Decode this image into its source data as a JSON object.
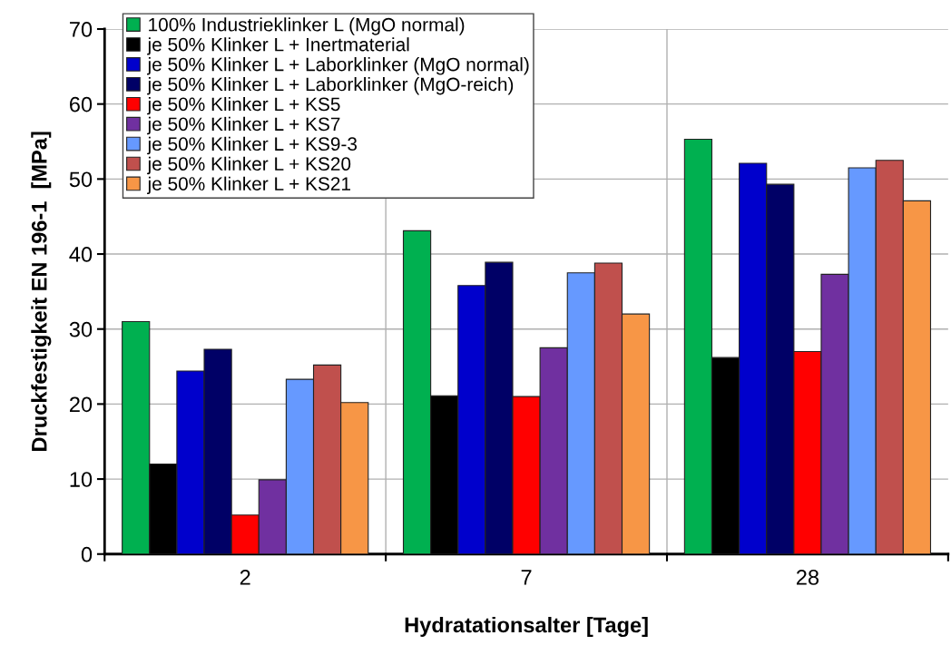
{
  "chart_data": {
    "type": "bar",
    "xlabel": "Hydratationsalter [Tage]",
    "ylabel": "Druckfestigkeit EN 196-1  [MPa]",
    "categories": [
      "2",
      "7",
      "28"
    ],
    "series": [
      {
        "name": "100% Industrieklinker L (MgO normal)",
        "color": "#00b050",
        "values": [
          31.0,
          43.1,
          55.3
        ]
      },
      {
        "name": "je 50% Klinker L + Inertmaterial",
        "color": "#000000",
        "values": [
          12.0,
          21.1,
          26.2
        ]
      },
      {
        "name": "je 50% Klinker L + Laborklinker (MgO normal)",
        "color": "#0000cc",
        "values": [
          24.4,
          35.8,
          52.1
        ]
      },
      {
        "name": "je 50% Klinker L + Laborklinker (MgO-reich)",
        "color": "#000066",
        "values": [
          27.3,
          38.9,
          49.3
        ]
      },
      {
        "name": "je 50% Klinker L + KS5",
        "color": "#ff0000",
        "values": [
          5.2,
          21.0,
          27.0
        ]
      },
      {
        "name": "je 50% Klinker L + KS7",
        "color": "#7030a0",
        "values": [
          9.9,
          27.5,
          37.3
        ]
      },
      {
        "name": "je 50% Klinker L + KS9-3",
        "color": "#6699ff",
        "values": [
          23.3,
          37.5,
          51.5
        ]
      },
      {
        "name": "je 50% Klinker L + KS20",
        "color": "#c0504d",
        "values": [
          25.2,
          38.8,
          52.5
        ]
      },
      {
        "name": "je 50% Klinker L + KS21",
        "color": "#f79646",
        "values": [
          20.2,
          32.0,
          47.1
        ]
      }
    ],
    "ylim": [
      0,
      70
    ],
    "yticks": [
      0,
      10,
      20,
      30,
      40,
      50,
      60,
      70
    ],
    "grid": true,
    "legend": "top left"
  }
}
